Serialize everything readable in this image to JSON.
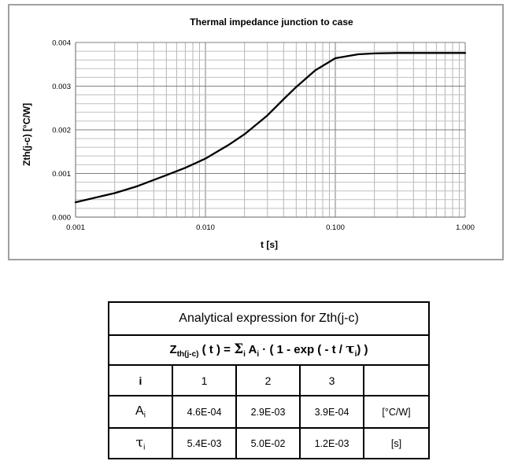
{
  "chart_data": {
    "type": "line",
    "title": "Thermal impedance junction to case",
    "xlabel": "t [s]",
    "ylabel": "Zth(j-c) [°C/W]",
    "x_scale": "log",
    "xlim": [
      0.001,
      1.0
    ],
    "ylim": [
      0,
      0.004
    ],
    "x_ticks": [
      "0.001",
      "0.010",
      "0.100",
      "1.000"
    ],
    "y_ticks": [
      "0.000",
      "0.001",
      "0.002",
      "0.003",
      "0.004"
    ],
    "grid": true,
    "legend": "none",
    "series": [
      {
        "color": "#000000",
        "x": [
          0.001,
          0.002,
          0.003,
          0.005,
          0.007,
          0.01,
          0.015,
          0.02,
          0.03,
          0.04,
          0.05,
          0.07,
          0.1,
          0.15,
          0.2,
          0.3,
          0.5,
          0.7,
          1.0
        ],
        "y": [
          0.00034,
          0.00055,
          0.00071,
          0.00096,
          0.00113,
          0.00134,
          0.00165,
          0.0019,
          0.00233,
          0.0027,
          0.00298,
          0.00336,
          0.00364,
          0.00373,
          0.00375,
          0.00376,
          0.00376,
          0.00376,
          0.00376
        ]
      }
    ]
  },
  "table": {
    "title": "Analytical expression for  Zth(j-c)",
    "formula": {
      "z": "Z",
      "z_sub": "th(j-c)",
      "rest1": " ( t ) = ",
      "sigma": "Σ",
      "sigma_sub": "i",
      "a": "  A",
      "a_sub": "i",
      "rest2": " · ( 1 - exp ( - t / ",
      "tau": "τ",
      "tau_sub": "i",
      "rest3": ") )"
    },
    "index_header": "i",
    "indices": [
      "1",
      "2",
      "3"
    ],
    "amp_symbol": "A",
    "amp_sub": "i",
    "amp_values": [
      "4.6E-04",
      "2.9E-03",
      "3.9E-04"
    ],
    "amp_unit": "[°C/W]",
    "tau_symbol": "τ",
    "tau_sub": "i",
    "tau_values": [
      "5.4E-03",
      "5.0E-02",
      "1.2E-03"
    ],
    "tau_unit": "[s]"
  }
}
